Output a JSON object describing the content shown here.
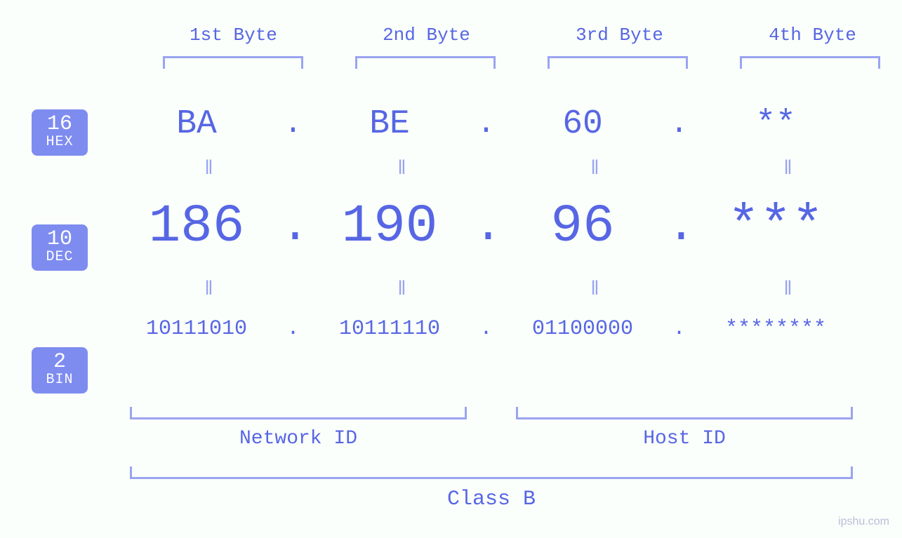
{
  "diagram": {
    "type": "infographic",
    "background_color": "#fafffb",
    "primary_color": "#5766e4",
    "secondary_color": "#9aa4f1",
    "badge_bg": "#7e8cf0",
    "badge_fg": "#ffffff",
    "font_family": "monospace",
    "byte_headers": [
      "1st Byte",
      "2nd Byte",
      "3rd Byte",
      "4th Byte"
    ],
    "rows": {
      "hex": {
        "badge_num": "16",
        "badge_label": "HEX",
        "octets": [
          "BA",
          "BE",
          "60",
          "**"
        ],
        "separator": ".",
        "cell_fontsize": 48
      },
      "dec": {
        "badge_num": "10",
        "badge_label": "DEC",
        "octets": [
          "186",
          "190",
          "96",
          "***"
        ],
        "separator": ".",
        "cell_fontsize": 76
      },
      "bin": {
        "badge_num": "2",
        "badge_label": "BIN",
        "octets": [
          "10111010",
          "10111110",
          "01100000",
          "********"
        ],
        "separator": ".",
        "cell_fontsize": 30
      }
    },
    "equals_glyph": "‖",
    "lower_groups": {
      "network": "Network ID",
      "host": "Host ID"
    },
    "class_label": "Class B",
    "watermark": "ipshu.com"
  }
}
